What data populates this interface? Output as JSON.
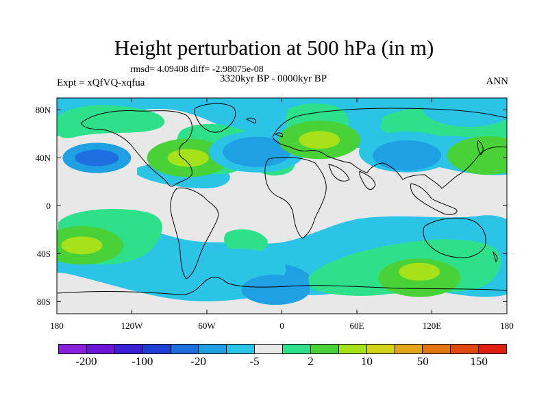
{
  "header": {
    "title": "Height perturbation at 500 hPa (in m)",
    "stats": "rmsd= 4.09408 diff= -2.98075e-08",
    "period": "3320kyr BP - 0000kyr BP",
    "experiment": "Expt = xQfVQ-xqfua",
    "season": "ANN"
  },
  "axes": {
    "lat_labels": [
      "80N",
      "40N",
      "0",
      "40S",
      "80S"
    ],
    "lon_labels": [
      "180",
      "120W",
      "60W",
      "0",
      "60E",
      "120E",
      "180"
    ]
  },
  "colors": {
    "ocean_background": "#e8e8e8",
    "coastline": "#000000",
    "level_colors": [
      "#8a1fdc",
      "#6a14d8",
      "#3a20d0",
      "#1c40d6",
      "#1e6ee0",
      "#1ea0e2",
      "#2cc4e6",
      "#e9e9e9",
      "#2ee08a",
      "#48d238",
      "#a6e11a",
      "#d2d41a",
      "#e2a418",
      "#e0760e",
      "#e04a10",
      "#e01e0e"
    ]
  },
  "colorbar": {
    "labels": [
      "-200",
      "-100",
      "-20",
      "-5",
      "2",
      "10",
      "50",
      "150"
    ]
  },
  "field_patches": [
    {
      "lon": 150,
      "lat": 83,
      "level": 6
    },
    {
      "lon": -148,
      "lat": 40,
      "level": 5
    },
    {
      "lon": -148,
      "lat": 40,
      "level": 4
    },
    {
      "lon": -75,
      "lat": 40,
      "level": 9
    },
    {
      "lon": -75,
      "lat": 40,
      "level": 10
    },
    {
      "lon": -20,
      "lat": 45,
      "level": 6
    },
    {
      "lon": -20,
      "lat": 45,
      "level": 5
    },
    {
      "lon": 30,
      "lat": 55,
      "level": 9
    },
    {
      "lon": 30,
      "lat": 55,
      "level": 10
    },
    {
      "lon": 100,
      "lat": 45,
      "level": 6
    },
    {
      "lon": 100,
      "lat": 42,
      "level": 5
    },
    {
      "lon": 165,
      "lat": 42,
      "level": 9
    },
    {
      "lon": -160,
      "lat": -33,
      "level": 9
    },
    {
      "lon": -160,
      "lat": -33,
      "level": 10
    },
    {
      "lon": -35,
      "lat": -53,
      "level": 6
    },
    {
      "lon": -5,
      "lat": -70,
      "level": 5
    },
    {
      "lon": 110,
      "lat": -60,
      "level": 9
    },
    {
      "lon": 110,
      "lat": -55,
      "level": 10
    }
  ]
}
